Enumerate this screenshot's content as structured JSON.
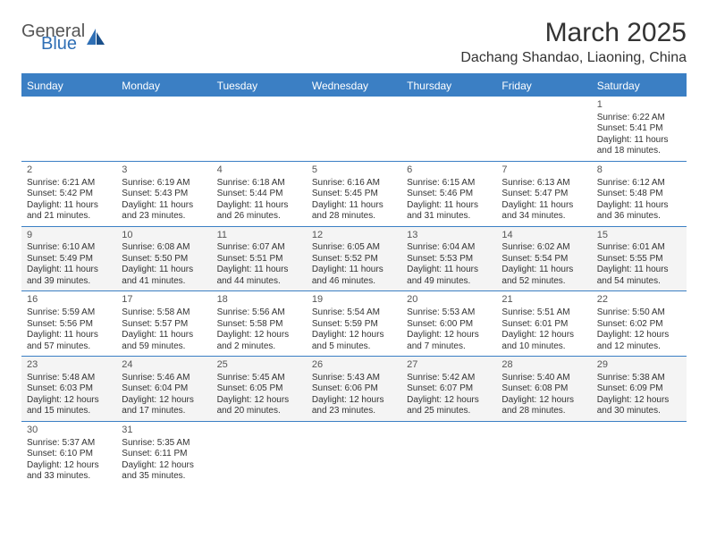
{
  "logo": {
    "word1": "General",
    "word2": "Blue"
  },
  "title": "March 2025",
  "location": "Dachang Shandao, Liaoning, China",
  "colors": {
    "header_bg": "#3b7fc4",
    "header_text": "#ffffff",
    "cell_border": "#3b7fc4",
    "alt_row_bg": "#f4f4f4",
    "text": "#333333"
  },
  "fonts": {
    "title_size": 30,
    "location_size": 16,
    "dayheader_size": 12,
    "cell_size": 10
  },
  "day_names": [
    "Sunday",
    "Monday",
    "Tuesday",
    "Wednesday",
    "Thursday",
    "Friday",
    "Saturday"
  ],
  "weeks": [
    [
      {
        "empty": true
      },
      {
        "empty": true
      },
      {
        "empty": true
      },
      {
        "empty": true
      },
      {
        "empty": true
      },
      {
        "empty": true
      },
      {
        "day": "1",
        "sunrise": "Sunrise: 6:22 AM",
        "sunset": "Sunset: 5:41 PM",
        "dl1": "Daylight: 11 hours",
        "dl2": "and 18 minutes."
      }
    ],
    [
      {
        "day": "2",
        "sunrise": "Sunrise: 6:21 AM",
        "sunset": "Sunset: 5:42 PM",
        "dl1": "Daylight: 11 hours",
        "dl2": "and 21 minutes."
      },
      {
        "day": "3",
        "sunrise": "Sunrise: 6:19 AM",
        "sunset": "Sunset: 5:43 PM",
        "dl1": "Daylight: 11 hours",
        "dl2": "and 23 minutes."
      },
      {
        "day": "4",
        "sunrise": "Sunrise: 6:18 AM",
        "sunset": "Sunset: 5:44 PM",
        "dl1": "Daylight: 11 hours",
        "dl2": "and 26 minutes."
      },
      {
        "day": "5",
        "sunrise": "Sunrise: 6:16 AM",
        "sunset": "Sunset: 5:45 PM",
        "dl1": "Daylight: 11 hours",
        "dl2": "and 28 minutes."
      },
      {
        "day": "6",
        "sunrise": "Sunrise: 6:15 AM",
        "sunset": "Sunset: 5:46 PM",
        "dl1": "Daylight: 11 hours",
        "dl2": "and 31 minutes."
      },
      {
        "day": "7",
        "sunrise": "Sunrise: 6:13 AM",
        "sunset": "Sunset: 5:47 PM",
        "dl1": "Daylight: 11 hours",
        "dl2": "and 34 minutes."
      },
      {
        "day": "8",
        "sunrise": "Sunrise: 6:12 AM",
        "sunset": "Sunset: 5:48 PM",
        "dl1": "Daylight: 11 hours",
        "dl2": "and 36 minutes."
      }
    ],
    [
      {
        "day": "9",
        "sunrise": "Sunrise: 6:10 AM",
        "sunset": "Sunset: 5:49 PM",
        "dl1": "Daylight: 11 hours",
        "dl2": "and 39 minutes."
      },
      {
        "day": "10",
        "sunrise": "Sunrise: 6:08 AM",
        "sunset": "Sunset: 5:50 PM",
        "dl1": "Daylight: 11 hours",
        "dl2": "and 41 minutes."
      },
      {
        "day": "11",
        "sunrise": "Sunrise: 6:07 AM",
        "sunset": "Sunset: 5:51 PM",
        "dl1": "Daylight: 11 hours",
        "dl2": "and 44 minutes."
      },
      {
        "day": "12",
        "sunrise": "Sunrise: 6:05 AM",
        "sunset": "Sunset: 5:52 PM",
        "dl1": "Daylight: 11 hours",
        "dl2": "and 46 minutes."
      },
      {
        "day": "13",
        "sunrise": "Sunrise: 6:04 AM",
        "sunset": "Sunset: 5:53 PM",
        "dl1": "Daylight: 11 hours",
        "dl2": "and 49 minutes."
      },
      {
        "day": "14",
        "sunrise": "Sunrise: 6:02 AM",
        "sunset": "Sunset: 5:54 PM",
        "dl1": "Daylight: 11 hours",
        "dl2": "and 52 minutes."
      },
      {
        "day": "15",
        "sunrise": "Sunrise: 6:01 AM",
        "sunset": "Sunset: 5:55 PM",
        "dl1": "Daylight: 11 hours",
        "dl2": "and 54 minutes."
      }
    ],
    [
      {
        "day": "16",
        "sunrise": "Sunrise: 5:59 AM",
        "sunset": "Sunset: 5:56 PM",
        "dl1": "Daylight: 11 hours",
        "dl2": "and 57 minutes."
      },
      {
        "day": "17",
        "sunrise": "Sunrise: 5:58 AM",
        "sunset": "Sunset: 5:57 PM",
        "dl1": "Daylight: 11 hours",
        "dl2": "and 59 minutes."
      },
      {
        "day": "18",
        "sunrise": "Sunrise: 5:56 AM",
        "sunset": "Sunset: 5:58 PM",
        "dl1": "Daylight: 12 hours",
        "dl2": "and 2 minutes."
      },
      {
        "day": "19",
        "sunrise": "Sunrise: 5:54 AM",
        "sunset": "Sunset: 5:59 PM",
        "dl1": "Daylight: 12 hours",
        "dl2": "and 5 minutes."
      },
      {
        "day": "20",
        "sunrise": "Sunrise: 5:53 AM",
        "sunset": "Sunset: 6:00 PM",
        "dl1": "Daylight: 12 hours",
        "dl2": "and 7 minutes."
      },
      {
        "day": "21",
        "sunrise": "Sunrise: 5:51 AM",
        "sunset": "Sunset: 6:01 PM",
        "dl1": "Daylight: 12 hours",
        "dl2": "and 10 minutes."
      },
      {
        "day": "22",
        "sunrise": "Sunrise: 5:50 AM",
        "sunset": "Sunset: 6:02 PM",
        "dl1": "Daylight: 12 hours",
        "dl2": "and 12 minutes."
      }
    ],
    [
      {
        "day": "23",
        "sunrise": "Sunrise: 5:48 AM",
        "sunset": "Sunset: 6:03 PM",
        "dl1": "Daylight: 12 hours",
        "dl2": "and 15 minutes."
      },
      {
        "day": "24",
        "sunrise": "Sunrise: 5:46 AM",
        "sunset": "Sunset: 6:04 PM",
        "dl1": "Daylight: 12 hours",
        "dl2": "and 17 minutes."
      },
      {
        "day": "25",
        "sunrise": "Sunrise: 5:45 AM",
        "sunset": "Sunset: 6:05 PM",
        "dl1": "Daylight: 12 hours",
        "dl2": "and 20 minutes."
      },
      {
        "day": "26",
        "sunrise": "Sunrise: 5:43 AM",
        "sunset": "Sunset: 6:06 PM",
        "dl1": "Daylight: 12 hours",
        "dl2": "and 23 minutes."
      },
      {
        "day": "27",
        "sunrise": "Sunrise: 5:42 AM",
        "sunset": "Sunset: 6:07 PM",
        "dl1": "Daylight: 12 hours",
        "dl2": "and 25 minutes."
      },
      {
        "day": "28",
        "sunrise": "Sunrise: 5:40 AM",
        "sunset": "Sunset: 6:08 PM",
        "dl1": "Daylight: 12 hours",
        "dl2": "and 28 minutes."
      },
      {
        "day": "29",
        "sunrise": "Sunrise: 5:38 AM",
        "sunset": "Sunset: 6:09 PM",
        "dl1": "Daylight: 12 hours",
        "dl2": "and 30 minutes."
      }
    ],
    [
      {
        "day": "30",
        "sunrise": "Sunrise: 5:37 AM",
        "sunset": "Sunset: 6:10 PM",
        "dl1": "Daylight: 12 hours",
        "dl2": "and 33 minutes."
      },
      {
        "day": "31",
        "sunrise": "Sunrise: 5:35 AM",
        "sunset": "Sunset: 6:11 PM",
        "dl1": "Daylight: 12 hours",
        "dl2": "and 35 minutes."
      },
      {
        "empty": true
      },
      {
        "empty": true
      },
      {
        "empty": true
      },
      {
        "empty": true
      },
      {
        "empty": true
      }
    ]
  ]
}
